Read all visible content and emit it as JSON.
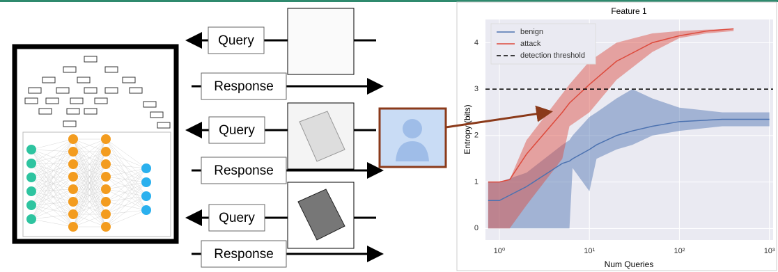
{
  "diagram": {
    "messages": [
      "Query",
      "Response",
      "Query",
      "Response",
      "Query",
      "Response"
    ]
  },
  "chart_data": {
    "type": "band-line",
    "title": "Feature 1",
    "x_label": "Num Queries",
    "y_label": "Entropy (bits)",
    "x_scale": "log",
    "xlim": [
      0.7,
      1100
    ],
    "ylim": [
      -0.25,
      4.5
    ],
    "xticks": [
      {
        "value": 1,
        "label": "10⁰"
      },
      {
        "value": 10,
        "label": "10¹"
      },
      {
        "value": 100,
        "label": "10²"
      },
      {
        "value": 1000,
        "label": "10³"
      }
    ],
    "yticks": [
      0,
      1,
      2,
      3,
      4
    ],
    "grid": true,
    "legend": "upper-left",
    "series": [
      {
        "name": "benign",
        "color": "#4c72b0",
        "x": [
          0.75,
          1,
          2,
          5,
          6,
          6.5,
          10,
          12,
          20,
          30,
          50,
          100,
          300,
          1000
        ],
        "values": [
          0.6,
          0.6,
          0.9,
          1.4,
          1.45,
          1.5,
          1.7,
          1.8,
          2.0,
          2.1,
          2.2,
          2.3,
          2.35,
          2.35
        ],
        "lower": [
          0,
          0,
          0,
          0,
          0,
          1.3,
          0.8,
          1.5,
          1.7,
          1.8,
          2.0,
          2.1,
          2.2,
          2.2
        ],
        "upper": [
          1,
          1,
          1.2,
          1.8,
          1.9,
          2.0,
          2.4,
          2.5,
          2.8,
          3.0,
          2.8,
          2.6,
          2.5,
          2.5
        ]
      },
      {
        "name": "attack",
        "color": "#dd4a3c",
        "x": [
          0.75,
          1,
          1.3,
          2,
          5,
          6,
          10,
          20,
          50,
          100,
          200,
          400
        ],
        "values": [
          1,
          1,
          1.05,
          1.6,
          2.5,
          2.7,
          3.1,
          3.6,
          4.0,
          4.15,
          4.25,
          4.3
        ],
        "lower": [
          0,
          0,
          0,
          0.5,
          1.5,
          2.2,
          2.5,
          3.2,
          3.8,
          4.1,
          4.2,
          4.25
        ],
        "upper": [
          1,
          1,
          1.05,
          1.9,
          2.9,
          3.1,
          3.6,
          4.0,
          4.2,
          4.25,
          4.28,
          4.3
        ]
      }
    ],
    "threshold": {
      "name": "detection threshold",
      "value": 3,
      "color": "#000000"
    }
  }
}
